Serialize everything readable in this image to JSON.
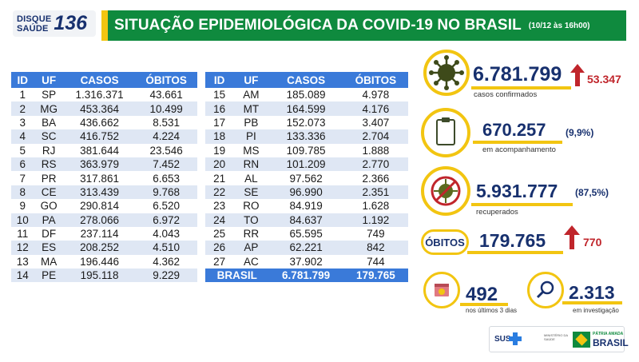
{
  "header": {
    "disque_word_1": "DISQUE",
    "disque_word_2": "SAÚDE",
    "disque_number": "136",
    "title": "SITUAÇÃO EPIDEMIOLÓGICA DA COVID-19 NO BRASIL",
    "date": "(10/12 às 16h00)"
  },
  "table_columns": [
    "ID",
    "UF",
    "CASOS",
    "ÓBITOS"
  ],
  "table_left": [
    [
      "1",
      "SP",
      "1.316.371",
      "43.661"
    ],
    [
      "2",
      "MG",
      "453.364",
      "10.499"
    ],
    [
      "3",
      "BA",
      "436.662",
      "8.531"
    ],
    [
      "4",
      "SC",
      "416.752",
      "4.224"
    ],
    [
      "5",
      "RJ",
      "381.644",
      "23.546"
    ],
    [
      "6",
      "RS",
      "363.979",
      "7.452"
    ],
    [
      "7",
      "PR",
      "317.861",
      "6.653"
    ],
    [
      "8",
      "CE",
      "313.439",
      "9.768"
    ],
    [
      "9",
      "GO",
      "290.814",
      "6.520"
    ],
    [
      "10",
      "PA",
      "278.066",
      "6.972"
    ],
    [
      "11",
      "DF",
      "237.114",
      "4.043"
    ],
    [
      "12",
      "ES",
      "208.252",
      "4.510"
    ],
    [
      "13",
      "MA",
      "196.446",
      "4.362"
    ],
    [
      "14",
      "PE",
      "195.118",
      "9.229"
    ]
  ],
  "table_right": [
    [
      "15",
      "AM",
      "185.089",
      "4.978"
    ],
    [
      "16",
      "MT",
      "164.599",
      "4.176"
    ],
    [
      "17",
      "PB",
      "152.073",
      "3.407"
    ],
    [
      "18",
      "PI",
      "133.336",
      "2.704"
    ],
    [
      "19",
      "MS",
      "109.785",
      "1.888"
    ],
    [
      "20",
      "RN",
      "101.209",
      "2.770"
    ],
    [
      "21",
      "AL",
      "97.562",
      "2.366"
    ],
    [
      "22",
      "SE",
      "96.990",
      "2.351"
    ],
    [
      "23",
      "RO",
      "84.919",
      "1.628"
    ],
    [
      "24",
      "TO",
      "84.637",
      "1.192"
    ],
    [
      "25",
      "RR",
      "65.595",
      "749"
    ],
    [
      "26",
      "AP",
      "62.221",
      "842"
    ],
    [
      "27",
      "AC",
      "37.902",
      "744"
    ]
  ],
  "table_total": {
    "label": "BRASIL",
    "casos": "6.781.799",
    "obitos": "179.765"
  },
  "stats": {
    "confirmed": {
      "value": "6.781.799",
      "delta": "53.347",
      "label": "casos confirmados"
    },
    "monitoring": {
      "value": "670.257",
      "pct": "(9,9%)",
      "label": "em acompanhamento"
    },
    "recovered": {
      "value": "5.931.777",
      "pct": "(87,5%)",
      "label": "recuperados"
    },
    "deaths": {
      "badge": "ÓBITOS",
      "value": "179.765",
      "delta": "770"
    },
    "last3days": {
      "value": "492",
      "label": "nos últimos 3 dias"
    },
    "investigation": {
      "value": "2.313",
      "label": "em investigação"
    }
  },
  "footer": {
    "sus": "SUS",
    "ministry": "MINISTÉRIO DA SAÚDE",
    "patria": "PÁTRIA AMADA",
    "brasil": "BRASIL"
  },
  "colors": {
    "green": "#0f8a3e",
    "yellow": "#f2c511",
    "table_blue": "#3a7ad9",
    "navy": "#17306e",
    "red": "#c0252b"
  },
  "icons": [
    "virus-icon",
    "clipboard-icon",
    "no-virus-icon",
    "calendar-icon",
    "magnifier-icon",
    "arrow-up-icon"
  ]
}
